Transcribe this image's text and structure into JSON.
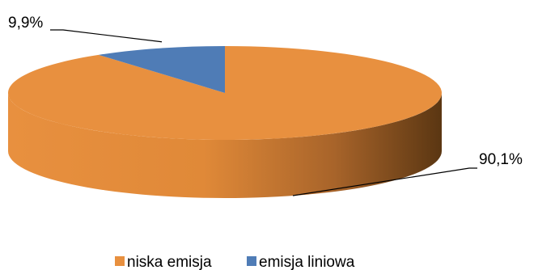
{
  "chart_data": {
    "type": "pie",
    "style": "3d",
    "categories": [
      "niska emisja",
      "emisja liniowa"
    ],
    "values": [
      90.1,
      9.9
    ],
    "data_labels": [
      "90,1%",
      "9,9%"
    ],
    "colors": [
      "#e8903f",
      "#4f7cb6"
    ],
    "legend": {
      "placement": "bottom",
      "entries": [
        "niska emisja",
        "emisja liniowa"
      ]
    }
  }
}
